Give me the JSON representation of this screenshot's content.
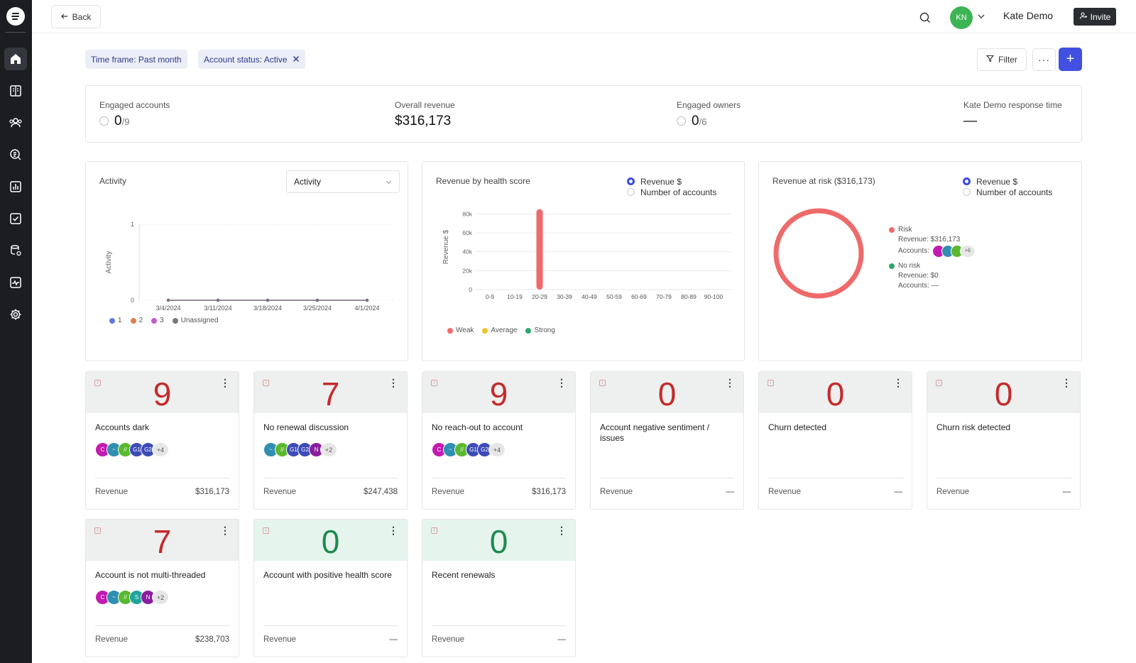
{
  "header": {
    "back_label": "Back",
    "user_initials": "KN",
    "user_name": "Kate Demo",
    "invite_label": "Invite"
  },
  "filters": {
    "chips": [
      "Time frame: Past month",
      "Account status: Active"
    ],
    "filter_label": "Filter",
    "more_label": "···",
    "add_label": "+"
  },
  "stats": {
    "engaged_accounts": {
      "label": "Engaged accounts",
      "value": "0",
      "denom": "/9"
    },
    "overall_revenue": {
      "label": "Overall revenue",
      "value": "$316,173"
    },
    "engaged_owners": {
      "label": "Engaged owners",
      "value": "0",
      "denom": "/6"
    },
    "response_time": {
      "label": "Kate Demo response time",
      "value": "—"
    }
  },
  "activity_panel": {
    "title": "Activity",
    "select_value": "Activity",
    "ylabel": "Activity",
    "legend": [
      {
        "label": "1",
        "color": "#5b7be0"
      },
      {
        "label": "2",
        "color": "#e07b4f"
      },
      {
        "label": "3",
        "color": "#c25bd0"
      },
      {
        "label": "Unassigned",
        "color": "#777777"
      }
    ]
  },
  "health_panel": {
    "title": "Revenue by health score",
    "radio_options": [
      "Revenue $",
      "Number of accounts"
    ],
    "legend": [
      {
        "label": "Weak",
        "color": "#ef6a6a"
      },
      {
        "label": "Average",
        "color": "#f2c22a"
      },
      {
        "label": "Strong",
        "color": "#2fa76a"
      }
    ]
  },
  "risk_panel": {
    "title": "Revenue at risk ($316,173)",
    "radio_options": [
      "Revenue $",
      "Number of accounts"
    ],
    "risk_label": "Risk",
    "risk_revenue": "Revenue: $316,173",
    "risk_accounts_label": "Accounts:",
    "risk_more": "+6",
    "norisk_label": "No risk",
    "norisk_revenue": "Revenue: $0",
    "norisk_accounts": "Accounts: —",
    "risk_color": "#ef6a6a",
    "norisk_color": "#2fa76a"
  },
  "chart_data": [
    {
      "type": "line",
      "x": [
        "3/4/2024",
        "3/11/2024",
        "3/18/2024",
        "3/25/2024",
        "4/1/2024"
      ],
      "series": [
        {
          "name": "1",
          "values": [
            0,
            0,
            0,
            0,
            0
          ]
        },
        {
          "name": "2",
          "values": [
            0,
            0,
            0,
            0,
            0
          ]
        },
        {
          "name": "3",
          "values": [
            0,
            0,
            0,
            0,
            0
          ]
        },
        {
          "name": "Unassigned",
          "values": [
            0,
            0,
            0,
            0,
            0
          ]
        }
      ],
      "ylabel": "Activity",
      "ylim": [
        0,
        1
      ],
      "yticks": [
        "0",
        "1"
      ],
      "grid": true,
      "legend": "bottom-left"
    },
    {
      "type": "bar",
      "categories": [
        "0-9",
        "10-19",
        "20-29",
        "30-39",
        "40-49",
        "50-59",
        "60-69",
        "70-79",
        "80-89",
        "90-100"
      ],
      "values": [
        0,
        0,
        85000,
        0,
        0,
        0,
        0,
        0,
        0,
        0
      ],
      "ylabel": "Revenue $",
      "ylim": [
        0,
        90000
      ],
      "yticks": [
        "0",
        "20k",
        "40k",
        "60k",
        "80k"
      ],
      "ytick_values": [
        0,
        20000,
        40000,
        60000,
        80000
      ],
      "grid": true,
      "legend": "bottom-left"
    },
    {
      "type": "pie",
      "categories": [
        "Risk",
        "No risk"
      ],
      "values": [
        316173,
        0
      ],
      "legend": "right"
    }
  ],
  "cards": [
    {
      "value": "9",
      "label": "Accounts dark",
      "revenue_label": "Revenue",
      "revenue": "$316,173",
      "tone": "neg",
      "avatars": [
        {
          "t": "C",
          "c": "#c21bb0"
        },
        {
          "t": "~",
          "c": "#2f8fb0"
        },
        {
          "t": "//",
          "c": "#5ab82e"
        },
        {
          "t": "G1",
          "c": "#3d4bb8"
        },
        {
          "t": "G2",
          "c": "#3d4bb8"
        }
      ],
      "more": "+4"
    },
    {
      "value": "7",
      "label": "No renewal discussion",
      "revenue_label": "Revenue",
      "revenue": "$247,438",
      "tone": "neg",
      "avatars": [
        {
          "t": "~",
          "c": "#2f8fb0"
        },
        {
          "t": "//",
          "c": "#5ab82e"
        },
        {
          "t": "G1",
          "c": "#3d4bb8"
        },
        {
          "t": "G2",
          "c": "#3d4bb8"
        },
        {
          "t": "N",
          "c": "#8a1f9e"
        }
      ],
      "more": "+2"
    },
    {
      "value": "9",
      "label": "No reach-out to account",
      "revenue_label": "Revenue",
      "revenue": "$316,173",
      "tone": "neg",
      "avatars": [
        {
          "t": "C",
          "c": "#c21bb0"
        },
        {
          "t": "~",
          "c": "#2f8fb0"
        },
        {
          "t": "//",
          "c": "#5ab82e"
        },
        {
          "t": "G1",
          "c": "#3d4bb8"
        },
        {
          "t": "G2",
          "c": "#3d4bb8"
        }
      ],
      "more": "+4"
    },
    {
      "value": "0",
      "label": "Account negative sentiment / issues",
      "revenue_label": "Revenue",
      "revenue": "—",
      "tone": "neg",
      "avatars": [],
      "more": ""
    },
    {
      "value": "0",
      "label": "Churn detected",
      "revenue_label": "Revenue",
      "revenue": "—",
      "tone": "neg",
      "avatars": [],
      "more": ""
    },
    {
      "value": "0",
      "label": "Churn risk detected",
      "revenue_label": "Revenue",
      "revenue": "—",
      "tone": "neg",
      "avatars": [],
      "more": ""
    },
    {
      "value": "7",
      "label": "Account is not multi-threaded",
      "revenue_label": "Revenue",
      "revenue": "$238,703",
      "tone": "neg",
      "avatars": [
        {
          "t": "C",
          "c": "#c21bb0"
        },
        {
          "t": "~",
          "c": "#2f8fb0"
        },
        {
          "t": "//",
          "c": "#5ab82e"
        },
        {
          "t": "S",
          "c": "#1fa39a"
        },
        {
          "t": "N",
          "c": "#8a1f9e"
        }
      ],
      "more": "+2"
    },
    {
      "value": "0",
      "label": "Account with positive health score",
      "revenue_label": "Revenue",
      "revenue": "—",
      "tone": "pos",
      "avatars": [],
      "more": ""
    },
    {
      "value": "0",
      "label": "Recent renewals",
      "revenue_label": "Revenue",
      "revenue": "—",
      "tone": "pos",
      "avatars": [],
      "more": ""
    }
  ],
  "sidebar": {
    "items": [
      "home-icon",
      "book-icon",
      "users-icon",
      "search-list-icon",
      "chart-icon",
      "checklist-icon",
      "database-icon",
      "activity-icon",
      "gear-icon"
    ]
  }
}
